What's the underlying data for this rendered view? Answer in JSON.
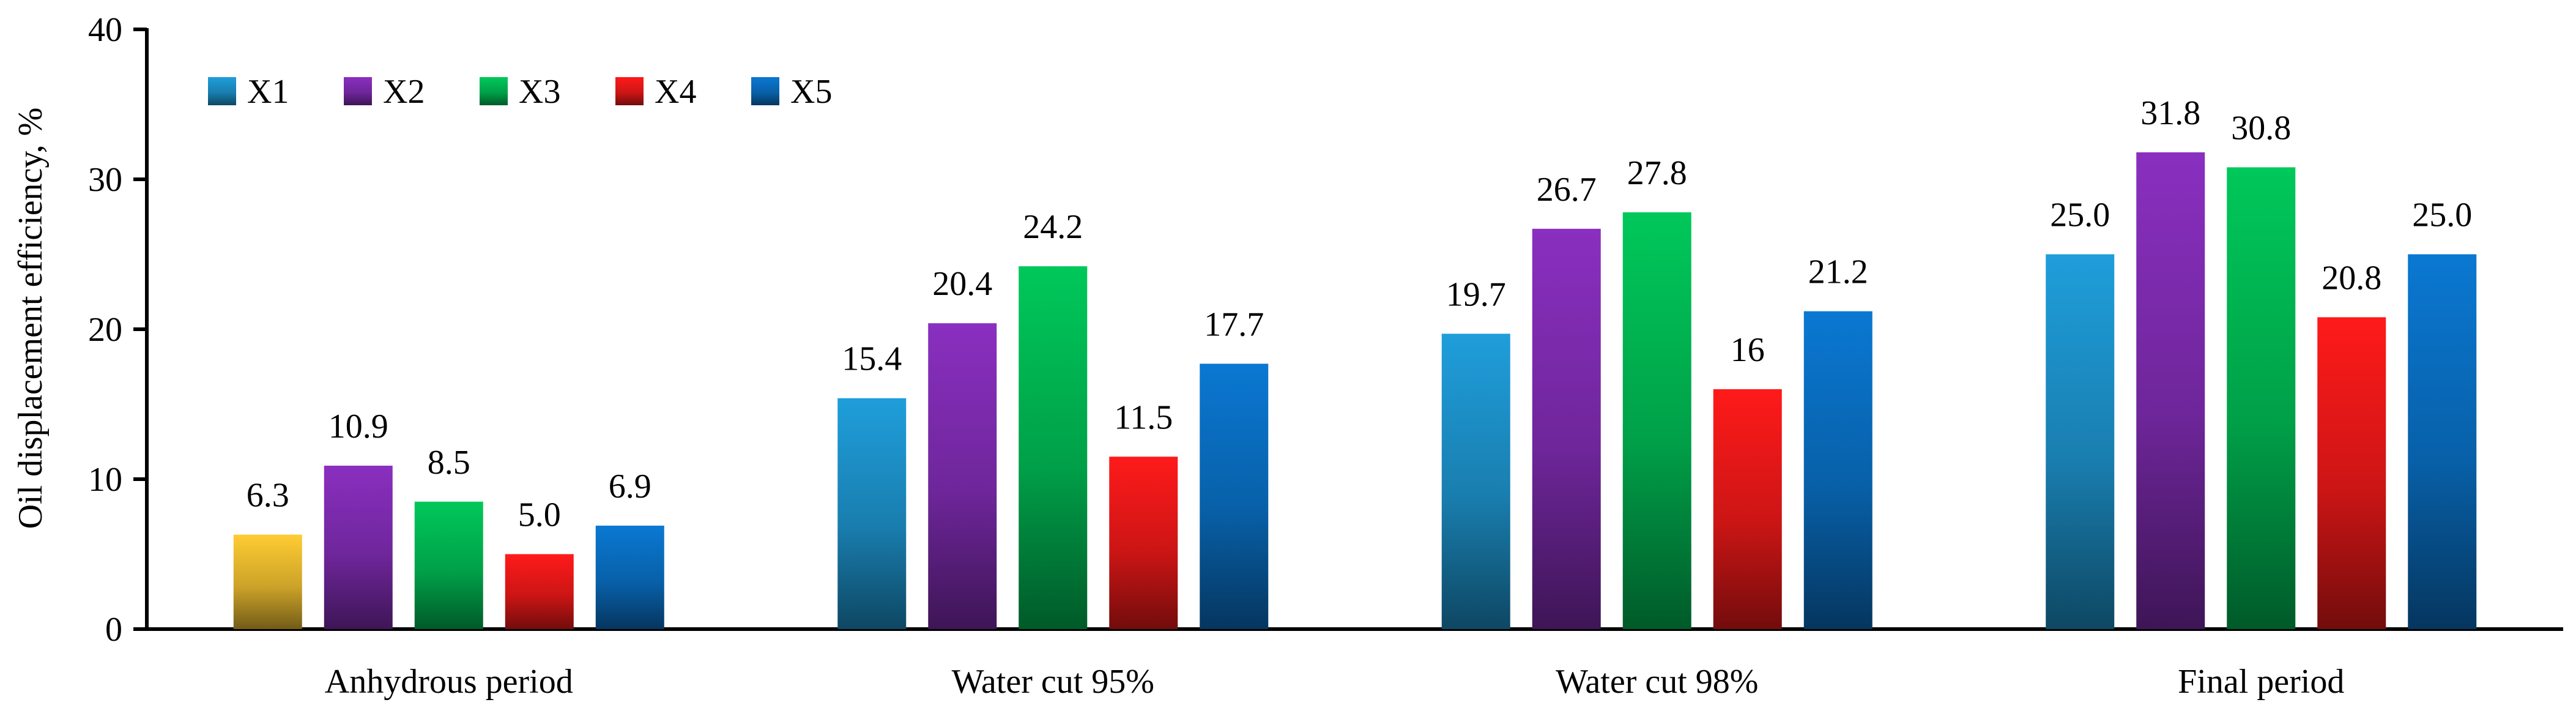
{
  "chart_data": {
    "type": "bar",
    "title": "",
    "xlabel": "",
    "ylabel": "Oil displacement efficiency, %",
    "ylim": [
      0,
      40
    ],
    "yticks": [
      0,
      10,
      20,
      30,
      40
    ],
    "grid": false,
    "legend_position": "top-left",
    "categories": [
      "Anhydrous period",
      "Water cut 95%",
      "Water cut 98%",
      "Final period"
    ],
    "series": [
      {
        "name": "X1",
        "values": [
          6.3,
          15.4,
          19.7,
          25.0
        ],
        "labels": [
          "6.3",
          "15.4",
          "19.7",
          "25.0"
        ],
        "color": "#1f9edb"
      },
      {
        "name": "X2",
        "values": [
          10.9,
          20.4,
          26.7,
          31.8
        ],
        "labels": [
          "10.9",
          "20.4",
          "26.7",
          "31.8"
        ],
        "color": "#8a2fc0"
      },
      {
        "name": "X3",
        "values": [
          8.5,
          24.2,
          27.8,
          30.8
        ],
        "labels": [
          "8.5",
          "24.2",
          "27.8",
          "30.8"
        ],
        "color": "#00c85a"
      },
      {
        "name": "X4",
        "values": [
          5.0,
          11.5,
          16,
          20.8
        ],
        "labels": [
          "5.0",
          "11.5",
          "16",
          "20.8"
        ],
        "color": "#ff1a1a"
      },
      {
        "name": "X5",
        "values": [
          6.9,
          17.7,
          21.2,
          25.0
        ],
        "labels": [
          "6.9",
          "17.7",
          "21.2",
          "25.0"
        ],
        "color": "#0a78d2"
      }
    ],
    "highlight": {
      "series": "X1",
      "category": "Anhydrous period",
      "color": "#ffcc33"
    }
  }
}
